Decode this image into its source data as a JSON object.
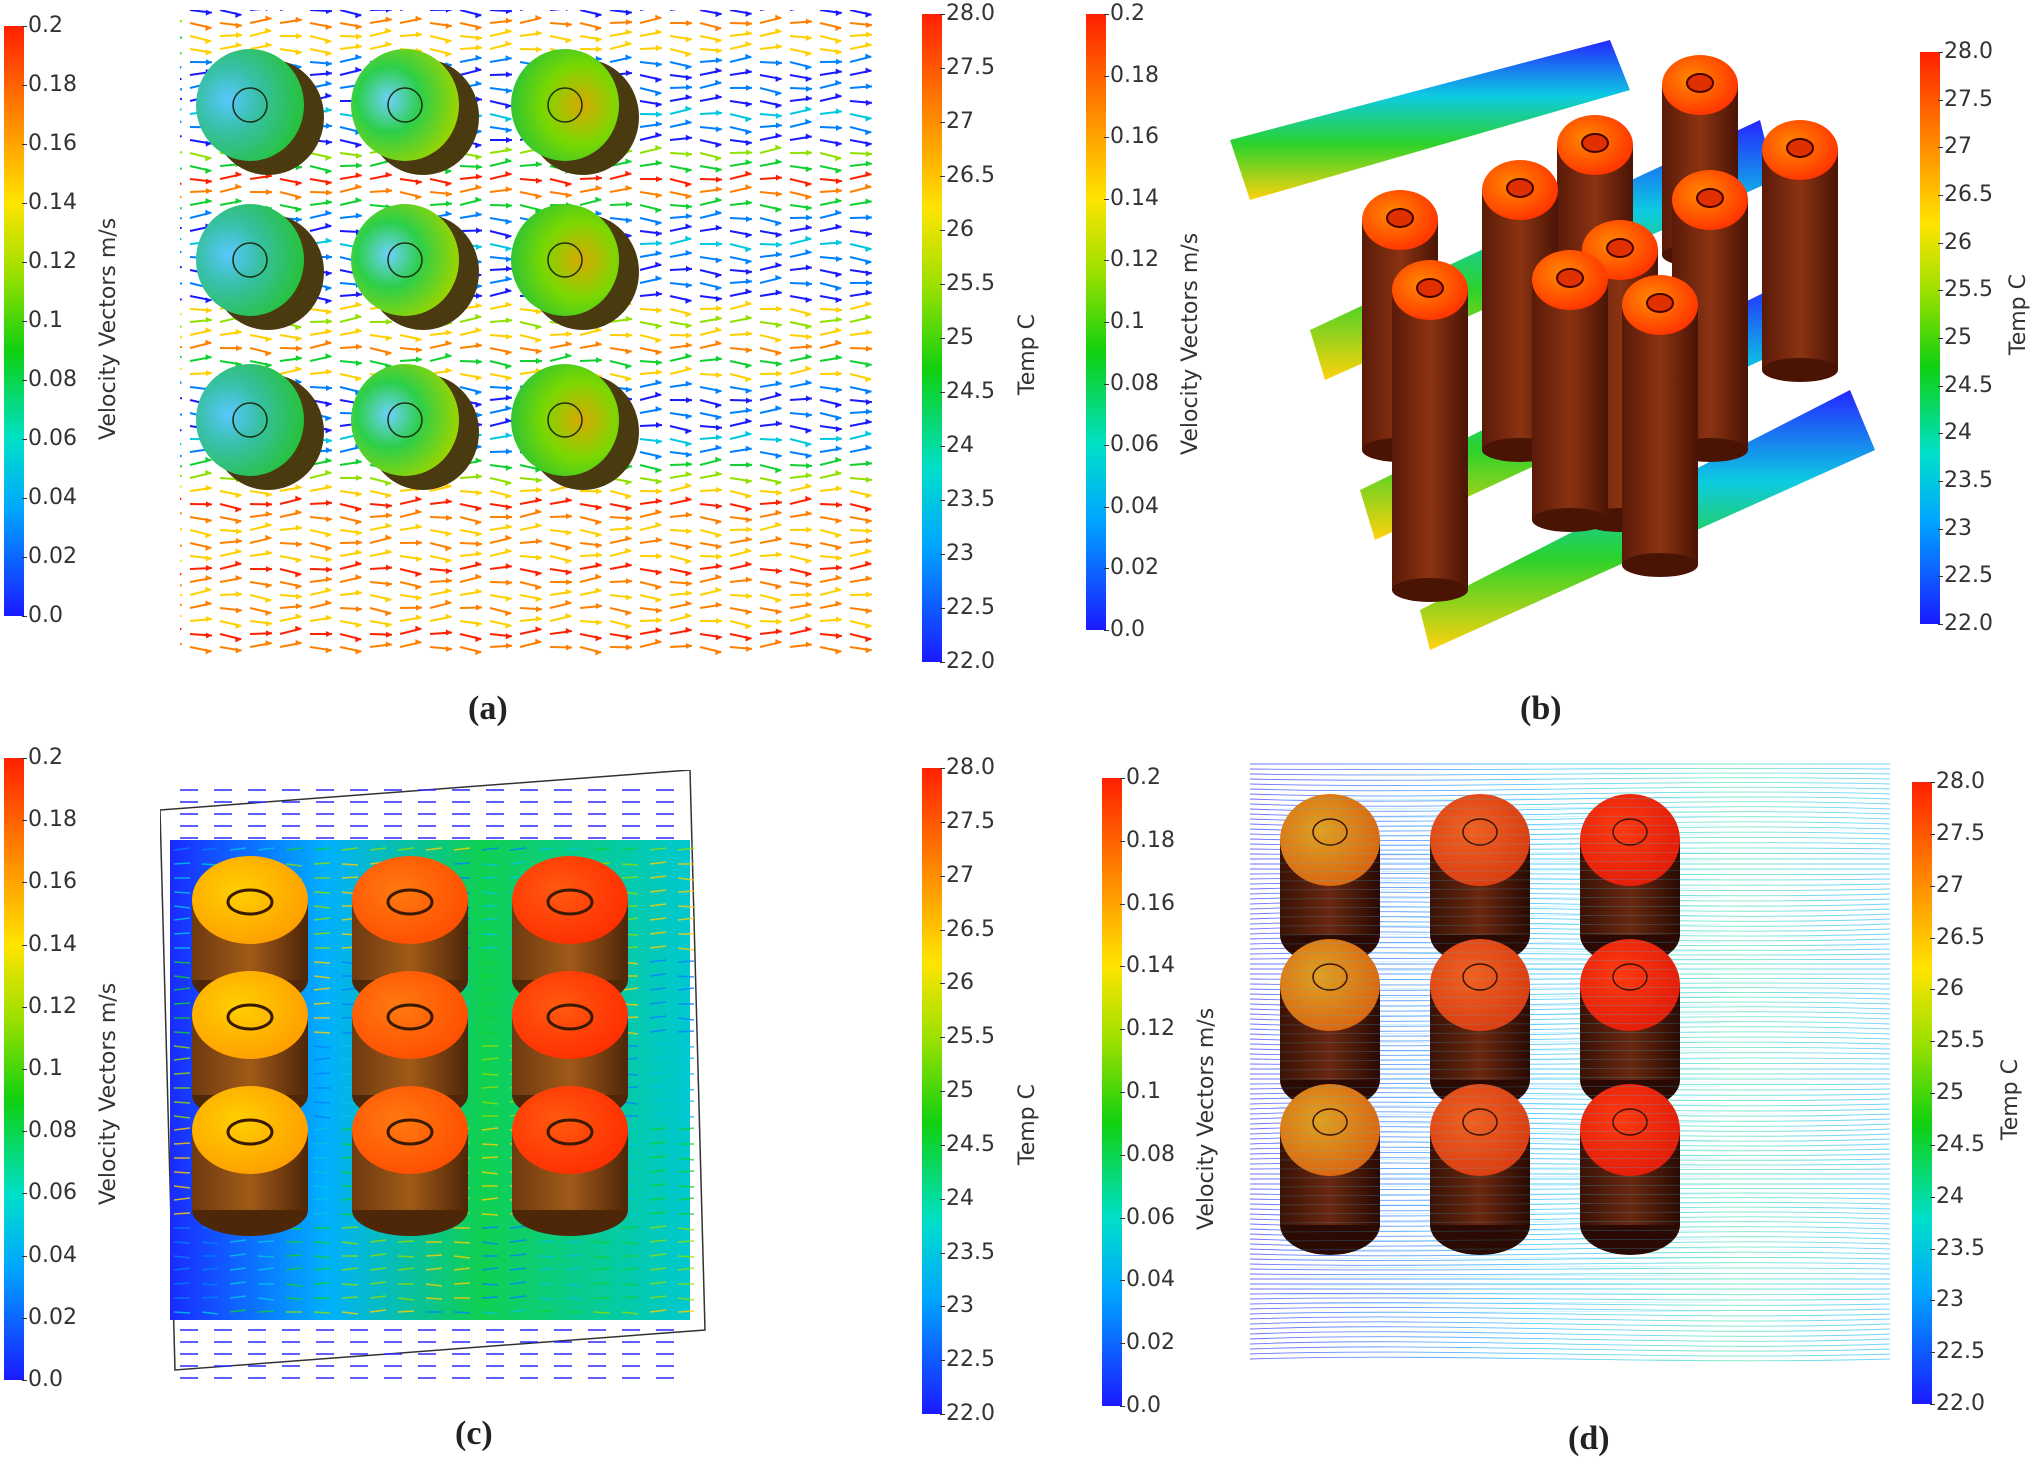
{
  "panels": [
    {
      "id": "a",
      "label": "(a)"
    },
    {
      "id": "b",
      "label": "(b)"
    },
    {
      "id": "c",
      "label": "(c)"
    },
    {
      "id": "d",
      "label": "(d)"
    }
  ],
  "velocity_legend": {
    "title": "Velocity Vectors m/s",
    "ticks": [
      "0.2",
      "0.18",
      "0.16",
      "0.14",
      "0.12",
      "0.1",
      "0.08",
      "0.06",
      "0.04",
      "0.02",
      "0.0"
    ]
  },
  "temp_legend": {
    "title": "Temp C",
    "ticks": [
      "28.0",
      "27.5",
      "27",
      "26.5",
      "26",
      "25.5",
      "25",
      "24.5",
      "24",
      "23.5",
      "23",
      "22.5",
      "22.0"
    ]
  },
  "colors": {
    "cold": "#1a1aff",
    "mid": "#10d010",
    "warm": "#ffe400",
    "hot": "#ff2000",
    "cylinder_body": "#7a2a10"
  }
}
